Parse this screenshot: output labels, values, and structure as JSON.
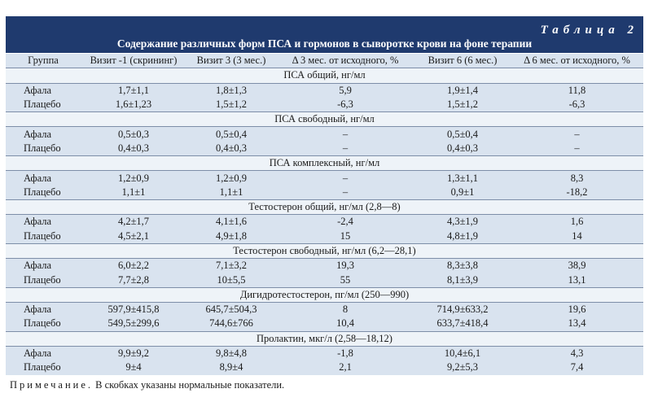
{
  "table_label": "Таблица 2",
  "title": "Содержание различных форм ПСА и гормонов в сыворотке крови на фоне терапии",
  "columns": [
    "Группа",
    "Визит -1 (скрининг)",
    "Визит 3 (3 мес.)",
    "Δ 3 мес. от исходного, %",
    "Визит 6 (6 мес.)",
    "Δ 6 мес. от исходного, %"
  ],
  "sections": [
    {
      "title": "ПСА общий, нг/мл",
      "rows": [
        {
          "group": "Афала",
          "v1": "1,7±1,1",
          "v3": "1,8±1,3",
          "d3": "5,9",
          "v6": "1,9±1,4",
          "d6": "11,8"
        },
        {
          "group": "Плацебо",
          "v1": "1,6±1,23",
          "v3": "1,5±1,2",
          "d3": "-6,3",
          "v6": "1,5±1,2",
          "d6": "-6,3"
        }
      ]
    },
    {
      "title": "ПСА свободный, нг/мл",
      "rows": [
        {
          "group": "Афала",
          "v1": "0,5±0,3",
          "v3": "0,5±0,4",
          "d3": "–",
          "v6": "0,5±0,4",
          "d6": "–"
        },
        {
          "group": "Плацебо",
          "v1": "0,4±0,3",
          "v3": "0,4±0,3",
          "d3": "–",
          "v6": "0,4±0,3",
          "d6": "–"
        }
      ]
    },
    {
      "title": "ПСА комплексный, нг/мл",
      "rows": [
        {
          "group": "Афала",
          "v1": "1,2±0,9",
          "v3": "1,2±0,9",
          "d3": "–",
          "v6": "1,3±1,1",
          "d6": "8,3"
        },
        {
          "group": "Плацебо",
          "v1": "1,1±1",
          "v3": "1,1±1",
          "d3": "–",
          "v6": "0,9±1",
          "d6": "-18,2"
        }
      ]
    },
    {
      "title": "Тестостерон общий, нг/мл (2,8—8)",
      "rows": [
        {
          "group": "Афала",
          "v1": "4,2±1,7",
          "v3": "4,1±1,6",
          "d3": "-2,4",
          "v6": "4,3±1,9",
          "d6": "1,6"
        },
        {
          "group": "Плацебо",
          "v1": "4,5±2,1",
          "v3": "4,9±1,8",
          "d3": "15",
          "v6": "4,8±1,9",
          "d6": "14"
        }
      ]
    },
    {
      "title": "Тестостерон свободный, нг/мл (6,2—28,1)",
      "rows": [
        {
          "group": "Афала",
          "v1": "6,0±2,2",
          "v3": "7,1±3,2",
          "d3": "19,3",
          "v6": "8,3±3,8",
          "d6": "38,9"
        },
        {
          "group": "Плацебо",
          "v1": "7,7±2,8",
          "v3": "10±5,5",
          "d3": "55",
          "v6": "8,1±3,9",
          "d6": "13,1"
        }
      ]
    },
    {
      "title": "Дигидротестостерон, пг/мл (250—990)",
      "rows": [
        {
          "group": "Афала",
          "v1": "597,9±415,8",
          "v3": "645,7±504,3",
          "d3": "8",
          "v6": "714,9±633,2",
          "d6": "19,6"
        },
        {
          "group": "Плацебо",
          "v1": "549,5±299,6",
          "v3": "744,6±766",
          "d3": "10,4",
          "v6": "633,7±418,4",
          "d6": "13,4"
        }
      ]
    },
    {
      "title": "Пролактин, мкг/л (2,58—18,12)",
      "rows": [
        {
          "group": "Афала",
          "v1": "9,9±9,2",
          "v3": "9,8±4,8",
          "d3": "-1,8",
          "v6": "10,4±6,1",
          "d6": "4,3"
        },
        {
          "group": "Плацебо",
          "v1": "9±4",
          "v3": "8,9±4",
          "d3": "2,1",
          "v6": "9,2±5,3",
          "d6": "7,4"
        }
      ]
    }
  ],
  "note": {
    "label": "Примечание.",
    "text": " В скобках указаны нормальные показатели."
  }
}
